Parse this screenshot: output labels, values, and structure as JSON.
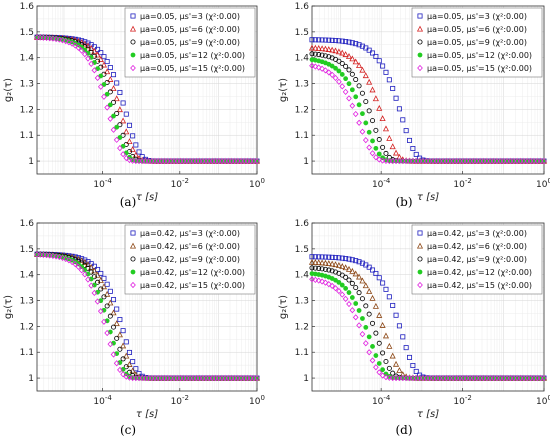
{
  "chart_data": [
    {
      "type": "scatter",
      "panel_label": "(a)",
      "xlabel": "τ [s]",
      "ylabel": "g₂(τ)",
      "x_scale": "log",
      "xlim": [
        2e-06,
        1
      ],
      "ylim": [
        0.95,
        1.6
      ],
      "xticks": [
        {
          "v": 0.0001,
          "base": "10",
          "exp": "-4"
        },
        {
          "v": 0.01,
          "base": "10",
          "exp": "-2"
        },
        {
          "v": 1,
          "base": "10",
          "exp": "0"
        }
      ],
      "yticks": [
        "1",
        "1.1",
        "1.2",
        "1.3",
        "1.4",
        "1.5",
        "1.6"
      ],
      "grid": true,
      "legend_position": "top-right",
      "series": [
        {
          "name": "μa=0.05, μs'=3 (χ²:0.00)",
          "color": "#1f1fbf",
          "marker": "square",
          "y0": 1.48,
          "tau_c": 0.00042
        },
        {
          "name": "μa=0.05, μs'=6 (χ²:0.00)",
          "color": "#d42020",
          "marker": "triangle",
          "y0": 1.48,
          "tau_c": 0.00031
        },
        {
          "name": "μa=0.05, μs'=9 (χ²:0.00)",
          "color": "#000000",
          "marker": "circle",
          "y0": 1.48,
          "tau_c": 0.00024
        },
        {
          "name": "μa=0.05, μs'=12 (χ²:0.00)",
          "color": "#22cc22",
          "marker": "star",
          "y0": 1.48,
          "tau_c": 0.00019
        },
        {
          "name": "μa=0.05, μs'=15 (χ²:0.00)",
          "color": "#e020e0",
          "marker": "diamond",
          "y0": 1.48,
          "tau_c": 0.00015
        }
      ]
    },
    {
      "type": "scatter",
      "panel_label": "(b)",
      "xlabel": "τ [s]",
      "ylabel": "g₂(τ)",
      "x_scale": "log",
      "xlim": [
        2e-06,
        1
      ],
      "ylim": [
        0.95,
        1.6
      ],
      "xticks": [
        {
          "v": 0.0001,
          "base": "10",
          "exp": "-4"
        },
        {
          "v": 0.01,
          "base": "10",
          "exp": "-2"
        },
        {
          "v": 1,
          "base": "10",
          "exp": "0"
        }
      ],
      "yticks": [
        "1",
        "1.1",
        "1.2",
        "1.3",
        "1.4",
        "1.5",
        "1.6"
      ],
      "grid": true,
      "legend_position": "top-right",
      "series": [
        {
          "name": "μa=0.05, μs'=3 (χ²:0.00)",
          "color": "#1f1fbf",
          "marker": "square",
          "y0": 1.47,
          "tau_c": 0.00032
        },
        {
          "name": "μa=0.05, μs'=6 (χ²:0.00)",
          "color": "#d42020",
          "marker": "triangle",
          "y0": 1.44,
          "tau_c": 0.00011
        },
        {
          "name": "μa=0.05, μs'=9 (χ²:0.00)",
          "color": "#000000",
          "marker": "circle",
          "y0": 1.42,
          "tau_c": 6.2e-05
        },
        {
          "name": "μa=0.05, μs'=12 (χ²:0.00)",
          "color": "#22cc22",
          "marker": "star",
          "y0": 1.4,
          "tau_c": 4.2e-05
        },
        {
          "name": "μa=0.05, μs'=15 (χ²:0.00)",
          "color": "#e020e0",
          "marker": "diamond",
          "y0": 1.38,
          "tau_c": 3e-05
        }
      ]
    },
    {
      "type": "scatter",
      "panel_label": "(c)",
      "xlabel": "τ [s]",
      "ylabel": "g₂(τ)",
      "x_scale": "log",
      "xlim": [
        2e-06,
        1
      ],
      "ylim": [
        0.95,
        1.6
      ],
      "xticks": [
        {
          "v": 0.0001,
          "base": "10",
          "exp": "-4"
        },
        {
          "v": 0.01,
          "base": "10",
          "exp": "-2"
        },
        {
          "v": 1,
          "base": "10",
          "exp": "0"
        }
      ],
      "yticks": [
        "1",
        "1.1",
        "1.2",
        "1.3",
        "1.4",
        "1.5",
        "1.6"
      ],
      "grid": true,
      "legend_position": "top-right",
      "series": [
        {
          "name": "μa=0.42, μs'=3 (χ²:0.00)",
          "color": "#1f1fbf",
          "marker": "square",
          "y0": 1.48,
          "tau_c": 0.00035
        },
        {
          "name": "μa=0.42, μs'=6 (χ²:0.00)",
          "color": "#8b4513",
          "marker": "triangle",
          "y0": 1.48,
          "tau_c": 0.00027
        },
        {
          "name": "μa=0.42, μs'=9 (χ²:0.00)",
          "color": "#000000",
          "marker": "circle",
          "y0": 1.48,
          "tau_c": 0.00021
        },
        {
          "name": "μa=0.42, μs'=12 (χ²:0.00)",
          "color": "#22cc22",
          "marker": "star",
          "y0": 1.48,
          "tau_c": 0.00016
        },
        {
          "name": "μa=0.42, μs'=15 (χ²:0.00)",
          "color": "#e020e0",
          "marker": "diamond",
          "y0": 1.48,
          "tau_c": 0.00013
        }
      ]
    },
    {
      "type": "scatter",
      "panel_label": "(d)",
      "xlabel": "τ [s]",
      "ylabel": "g₂(τ)",
      "x_scale": "log",
      "xlim": [
        2e-06,
        1
      ],
      "ylim": [
        0.95,
        1.6
      ],
      "xticks": [
        {
          "v": 0.0001,
          "base": "10",
          "exp": "-4"
        },
        {
          "v": 0.01,
          "base": "10",
          "exp": "-2"
        },
        {
          "v": 1,
          "base": "10",
          "exp": "0"
        }
      ],
      "yticks": [
        "1",
        "1.1",
        "1.2",
        "1.3",
        "1.4",
        "1.5",
        "1.6"
      ],
      "grid": true,
      "legend_position": "top-right",
      "series": [
        {
          "name": "μa=0.42, μs'=3 (χ²:0.00)",
          "color": "#1f1fbf",
          "marker": "square",
          "y0": 1.47,
          "tau_c": 0.00032
        },
        {
          "name": "μa=0.42, μs'=6 (χ²:0.00)",
          "color": "#8b4513",
          "marker": "triangle",
          "y0": 1.45,
          "tau_c": 0.00013
        },
        {
          "name": "μa=0.42, μs'=9 (χ²:0.00)",
          "color": "#000000",
          "marker": "circle",
          "y0": 1.43,
          "tau_c": 8e-05
        },
        {
          "name": "μa=0.42, μs'=12 (χ²:0.00)",
          "color": "#22cc22",
          "marker": "star",
          "y0": 1.41,
          "tau_c": 5.3e-05
        },
        {
          "name": "μa=0.42, μs'=15 (χ²:0.00)",
          "color": "#e020e0",
          "marker": "diamond",
          "y0": 1.39,
          "tau_c": 4e-05
        }
      ]
    }
  ]
}
